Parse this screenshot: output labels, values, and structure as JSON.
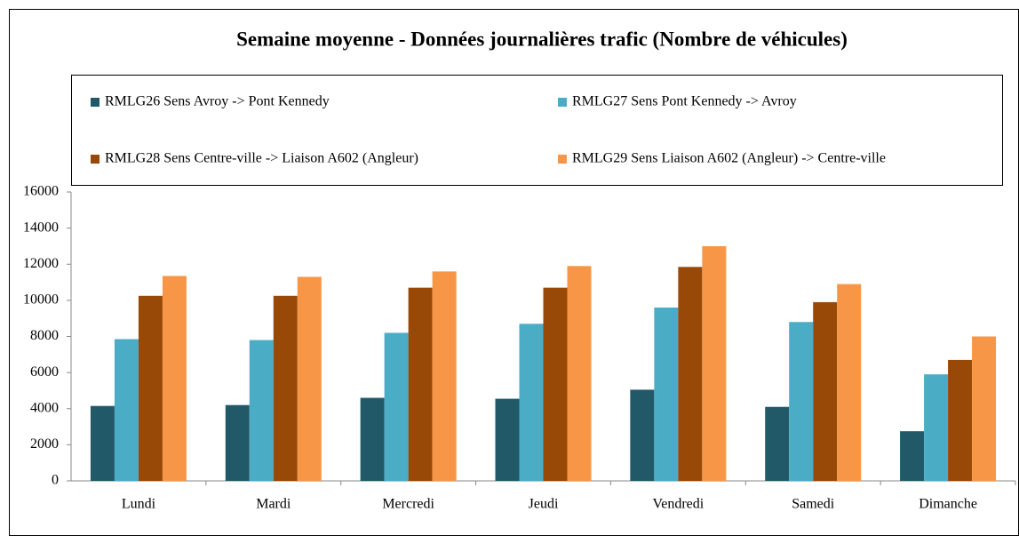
{
  "chart_data": {
    "type": "bar",
    "title": "Semaine moyenne - Données journalières trafic (Nombre de véhicules)",
    "categories": [
      "Lundi",
      "Mardi",
      "Mercredi",
      "Jeudi",
      "Vendredi",
      "Samedi",
      "Dimanche"
    ],
    "series": [
      {
        "name": "RMLG26 Sens Avroy -> Pont Kennedy",
        "color": "#215968",
        "values": [
          4150,
          4200,
          4600,
          4550,
          5050,
          4100,
          2750
        ]
      },
      {
        "name": "RMLG27 Sens Pont Kennedy -> Avroy",
        "color": "#4bacc6",
        "values": [
          7850,
          7800,
          8200,
          8700,
          9600,
          8800,
          5900
        ]
      },
      {
        "name": "RMLG28 Sens Centre-ville -> Liaison A602 (Angleur)",
        "color": "#984807",
        "values": [
          10250,
          10250,
          10700,
          10700,
          11850,
          9900,
          6700
        ]
      },
      {
        "name": "RMLG29 Sens Liaison A602 (Angleur) -> Centre-ville",
        "color": "#f79646",
        "values": [
          11350,
          11300,
          11600,
          11900,
          13000,
          10900,
          8000
        ]
      }
    ],
    "ylim": [
      0,
      16000
    ],
    "yticks": [
      0,
      2000,
      4000,
      6000,
      8000,
      10000,
      12000,
      14000,
      16000
    ],
    "grid": false,
    "legend": "top"
  }
}
